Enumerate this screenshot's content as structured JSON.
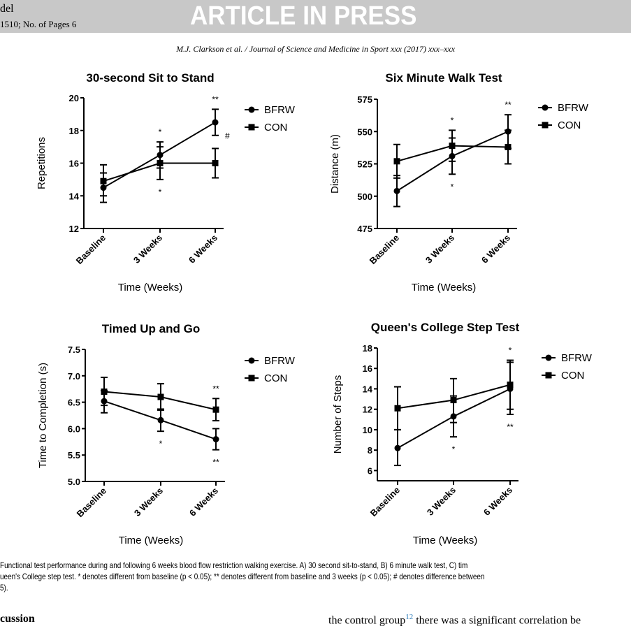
{
  "header": {
    "left_line1": "del",
    "left_line2": "1510;   No. of Pages 6",
    "banner": "ARTICLE IN PRESS",
    "running_head": "M.J. Clarkson et al. / Journal of Science and Medicine in Sport xxx (2017) xxx–xxx"
  },
  "caption": {
    "line1": "Functional test performance during and following 6 weeks blood flow restriction walking exercise. A) 30 second sit-to-stand, B) 6 minute walk test, C) tim",
    "line2": "ueen's College step test. * denotes different from baseline (p < 0.05); ** denotes different from baseline and 3 weeks (p < 0.05); # denotes difference between",
    "line3": "5)."
  },
  "body": {
    "section_heading": "cussion",
    "text_start": "the control group",
    "ref": "12",
    "text_end": " there was a significant correlation be"
  },
  "colors": {
    "series": "#000000",
    "banner": "#c8c8c8",
    "link": "#2a7ab8"
  },
  "chart_data": [
    {
      "type": "line",
      "title": "30-second Sit to Stand",
      "xlabel": "Time (Weeks)",
      "ylabel": "Repetitions",
      "categories": [
        "Baseline",
        "3 Weeks",
        "6 Weeks"
      ],
      "ylim": [
        12,
        20
      ],
      "yticks": [
        12,
        14,
        16,
        18,
        20
      ],
      "legend": "right",
      "series": [
        {
          "name": "BFRW",
          "marker": "circle",
          "values": [
            14.5,
            16.5,
            18.5
          ],
          "err_low": [
            13.6,
            15.7,
            17.7
          ],
          "err_high": [
            15.4,
            17.3,
            19.3
          ]
        },
        {
          "name": "CON",
          "marker": "square",
          "values": [
            14.9,
            16.0,
            16.0
          ],
          "err_low": [
            14.0,
            15.0,
            15.1
          ],
          "err_high": [
            15.9,
            17.0,
            16.9
          ]
        }
      ],
      "annotations": [
        {
          "category": 1,
          "position": "above",
          "text": "*"
        },
        {
          "category": 1,
          "position": "below",
          "text": "*"
        },
        {
          "category": 2,
          "position": "above",
          "text": "**"
        },
        {
          "category": 2,
          "position": "right",
          "text": "#"
        }
      ]
    },
    {
      "type": "line",
      "title": "Six Minute Walk Test",
      "xlabel": "Time (Weeks)",
      "ylabel": "Distance (m)",
      "categories": [
        "Baseline",
        "3 Weeks",
        "6 Weeks"
      ],
      "ylim": [
        475,
        575
      ],
      "yticks": [
        475,
        500,
        525,
        550,
        575
      ],
      "legend": "right",
      "series": [
        {
          "name": "BFRW",
          "marker": "circle",
          "values": [
            504,
            531,
            550
          ],
          "err_low": [
            492,
            517,
            537
          ],
          "err_high": [
            516,
            545,
            563
          ]
        },
        {
          "name": "CON",
          "marker": "square",
          "values": [
            527,
            539,
            538
          ],
          "err_low": [
            514,
            527,
            525
          ],
          "err_high": [
            540,
            551,
            551
          ]
        }
      ],
      "annotations": [
        {
          "category": 1,
          "position": "above",
          "text": "*"
        },
        {
          "category": 1,
          "position": "below",
          "text": "*"
        },
        {
          "category": 2,
          "position": "above",
          "text": "**"
        }
      ]
    },
    {
      "type": "line",
      "title": "Timed Up and Go",
      "xlabel": "Time (Weeks)",
      "ylabel": "Time to Completion (s)",
      "categories": [
        "Baseline",
        "3 Weeks",
        "6 Weeks"
      ],
      "ylim": [
        5.0,
        7.5
      ],
      "yticks": [
        5.0,
        5.5,
        6.0,
        6.5,
        7.0,
        7.5
      ],
      "legend": "right",
      "series": [
        {
          "name": "BFRW",
          "marker": "circle",
          "values": [
            6.52,
            6.16,
            5.8
          ],
          "err_low": [
            6.3,
            5.95,
            5.6
          ],
          "err_high": [
            6.72,
            6.37,
            6.0
          ]
        },
        {
          "name": "CON",
          "marker": "square",
          "values": [
            6.7,
            6.6,
            6.36
          ],
          "err_low": [
            6.44,
            6.35,
            6.15
          ],
          "err_high": [
            6.97,
            6.85,
            6.57
          ]
        }
      ],
      "annotations": [
        {
          "category": 1,
          "position": "below",
          "text": "*"
        },
        {
          "category": 2,
          "position": "above",
          "text": "**"
        },
        {
          "category": 2,
          "position": "below",
          "text": "**"
        }
      ]
    },
    {
      "type": "line",
      "title": "Queen's College Step Test",
      "xlabel": "Time (Weeks)",
      "ylabel": "Number of Steps",
      "categories": [
        "Baseline",
        "3 Weeks",
        "6 Weeks"
      ],
      "ylim": [
        5,
        18
      ],
      "yticks": [
        6,
        8,
        10,
        12,
        14,
        16,
        18
      ],
      "legend": "right",
      "series": [
        {
          "name": "BFRW",
          "marker": "circle",
          "values": [
            8.2,
            11.3,
            14.0
          ],
          "err_low": [
            6.5,
            9.3,
            11.5
          ],
          "err_high": [
            10.0,
            13.3,
            16.6
          ]
        },
        {
          "name": "CON",
          "marker": "square",
          "values": [
            12.1,
            12.9,
            14.4
          ],
          "err_low": [
            10.0,
            10.7,
            12.0
          ],
          "err_high": [
            14.2,
            15.0,
            16.8
          ]
        }
      ],
      "annotations": [
        {
          "category": 2,
          "position": "above",
          "text": "*"
        },
        {
          "category": 1,
          "position": "below",
          "text": "*"
        },
        {
          "category": 2,
          "position": "below",
          "text": "**"
        }
      ]
    }
  ]
}
